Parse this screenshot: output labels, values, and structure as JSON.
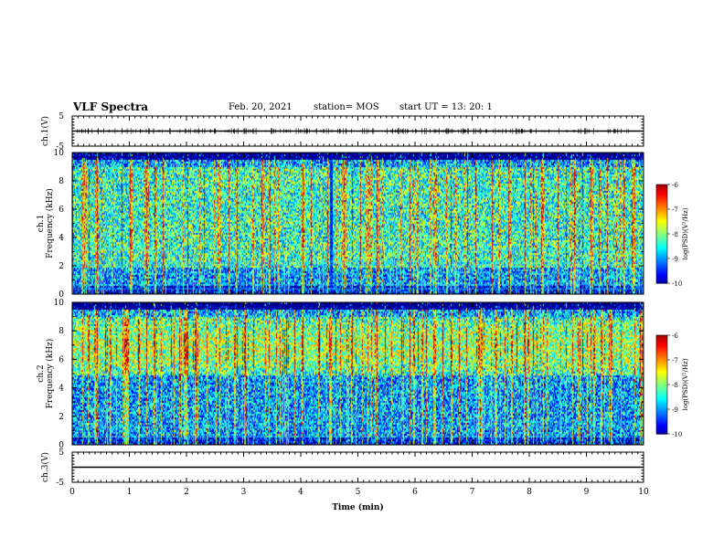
{
  "header": {
    "title": "VLF Spectra",
    "date": "Feb. 20, 2021",
    "station": "station= MOS",
    "start_ut": "start  UT =   13: 20: 1"
  },
  "colorbar": {
    "label": "log(PSD)(V²/Hz)",
    "ticks": [
      "-6",
      "-7",
      "-8",
      "-9",
      "-10"
    ]
  },
  "chart_data": [
    {
      "type": "line",
      "panel": "ch.1 waveform",
      "ylabel": "ch.1(V)",
      "ylim": [
        -5,
        5
      ],
      "yticks": [
        "5",
        "-5"
      ],
      "series": [
        {
          "x": [
            0,
            10
          ],
          "y": [
            0,
            0
          ]
        }
      ]
    },
    {
      "type": "heatmap",
      "panel": "ch.1 spectrogram",
      "ylabel": "ch.1\nFrequency (kHz)",
      "ylim": [
        0,
        10
      ],
      "yticks": [
        "0",
        "2",
        "4",
        "6",
        "8",
        "10"
      ],
      "xlim": [
        0,
        10
      ],
      "zlim": [
        -10,
        -6
      ],
      "gap_minutes": [
        4.5,
        4.55
      ],
      "bright_band_khz": [
        2,
        9
      ]
    },
    {
      "type": "heatmap",
      "panel": "ch.2 spectrogram",
      "ylabel": "ch.2\nFrequency (kHz)",
      "ylim": [
        0,
        10
      ],
      "yticks": [
        "0",
        "2",
        "4",
        "6",
        "8",
        "10"
      ],
      "xlim": [
        0,
        10
      ],
      "zlim": [
        -10,
        -6
      ],
      "bright_band_khz": [
        5,
        9
      ]
    },
    {
      "type": "line",
      "panel": "ch.3 waveform",
      "ylabel": "ch.3(V)",
      "ylim": [
        -5,
        5
      ],
      "yticks": [
        "5",
        "-5"
      ],
      "series": [
        {
          "x": [
            0,
            10
          ],
          "y": [
            0,
            0
          ]
        }
      ]
    }
  ],
  "xaxis": {
    "label": "Time  (min)",
    "ticks": [
      "0",
      "1",
      "2",
      "3",
      "4",
      "5",
      "6",
      "7",
      "8",
      "9",
      "10"
    ],
    "range": [
      0,
      10
    ]
  }
}
